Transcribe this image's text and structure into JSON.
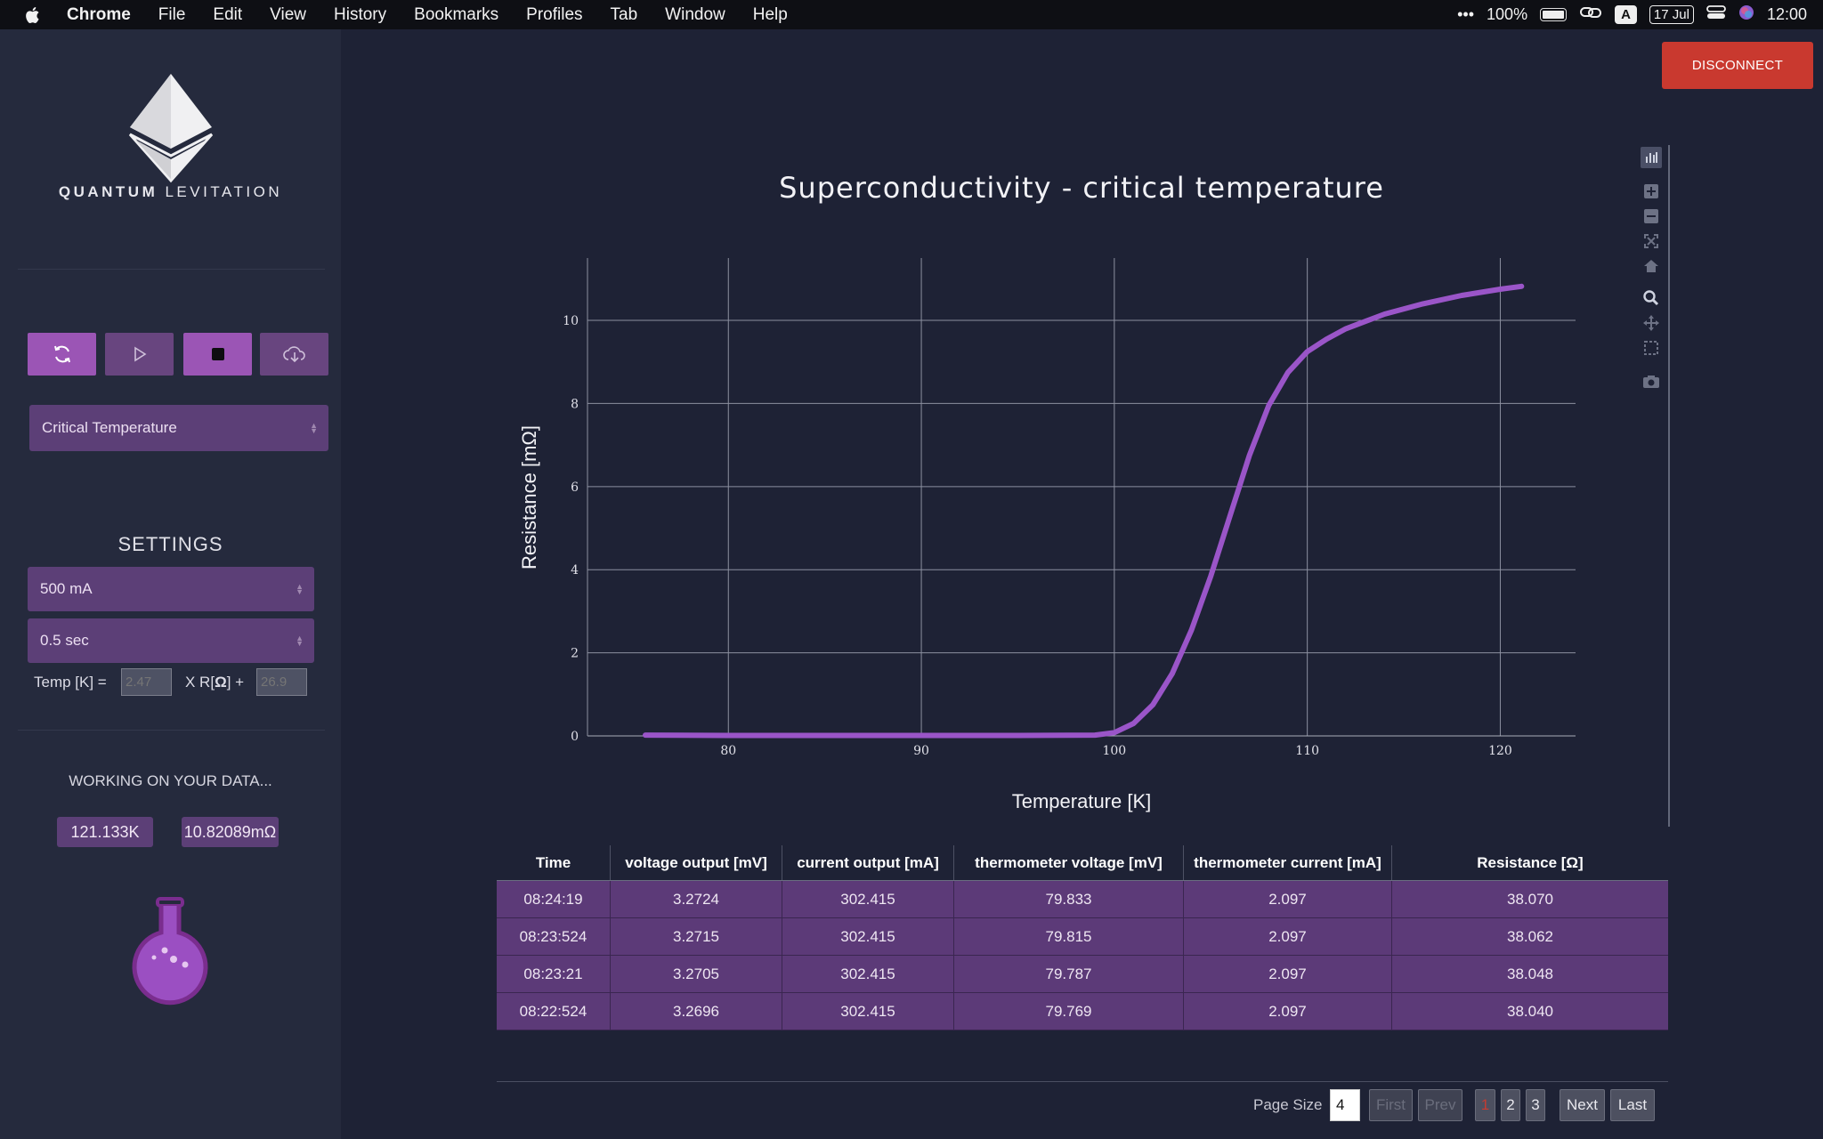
{
  "menubar": {
    "app": "Chrome",
    "items": [
      "File",
      "Edit",
      "View",
      "History",
      "Bookmarks",
      "Profiles",
      "Tab",
      "Window",
      "Help"
    ],
    "battery": "100%",
    "input_source": "A",
    "date": "17 Jul",
    "time": "12:00"
  },
  "sidebar": {
    "brand_bold": "QUANTUM",
    "brand_rest": " LEVITATION",
    "controls": [
      "refresh-icon",
      "play-icon",
      "stop-icon",
      "cloud-download-icon"
    ],
    "experiment_select": "Critical Temperature",
    "settings_title": "SETTINGS",
    "current_select": "500 mA",
    "interval_select": "0.5 sec",
    "calib_temp_label": "Temp [K] =",
    "calib_temp_placeholder": "2.47",
    "calib_mult_label_a": "X R[",
    "calib_mult_label_b": "Ω",
    "calib_mult_label_c": "] +",
    "calib_offset_placeholder": "26.9",
    "working": "WORKING ON YOUR DATA...",
    "readout_temp": "121.133K",
    "readout_res": "10.82089mΩ"
  },
  "header": {
    "disconnect": "DISCONNECT"
  },
  "modebar": [
    "bar-chart-icon",
    "zoom-in-icon",
    "zoom-out-icon",
    "autoscale-icon",
    "home-icon",
    "zoom-icon",
    "pan-icon",
    "box-select-icon",
    "camera-icon"
  ],
  "chart_data": {
    "type": "line",
    "title": "Superconductivity - critical temperature",
    "xlabel": "Temperature [K]",
    "ylabel": "Resistance [mΩ]",
    "xlim": [
      72.7,
      123.9
    ],
    "ylim": [
      0,
      11.5
    ],
    "xticks": [
      80,
      90,
      100,
      110,
      120
    ],
    "yticks": [
      0,
      2,
      4,
      6,
      8,
      10
    ],
    "grid": true,
    "color": "#9a55c8",
    "series": [
      {
        "x": [
          75.7,
          80,
          85,
          90,
          95,
          99,
          100,
          101,
          102,
          103,
          104,
          105,
          106,
          107,
          108,
          109,
          110,
          111,
          112,
          114,
          116,
          118,
          120,
          121.1
        ],
        "y": [
          0.02,
          0.01,
          0.01,
          0.01,
          0.01,
          0.02,
          0.08,
          0.3,
          0.75,
          1.5,
          2.55,
          3.85,
          5.3,
          6.75,
          7.95,
          8.75,
          9.25,
          9.55,
          9.8,
          10.15,
          10.4,
          10.6,
          10.75,
          10.82
        ]
      }
    ]
  },
  "table": {
    "headers": [
      "Time",
      "voltage output [mV]",
      "current output [mA]",
      "thermometer voltage [mV]",
      "thermometer current [mA]",
      "Resistance [Ω]"
    ],
    "rows": [
      [
        "08:24:19",
        "3.2724",
        "302.415",
        "79.833",
        "2.097",
        "38.070"
      ],
      [
        "08:23:524",
        "3.2715",
        "302.415",
        "79.815",
        "2.097",
        "38.062"
      ],
      [
        "08:23:21",
        "3.2705",
        "302.415",
        "79.787",
        "2.097",
        "38.048"
      ],
      [
        "08:22:524",
        "3.2696",
        "302.415",
        "79.769",
        "2.097",
        "38.040"
      ]
    ]
  },
  "pager": {
    "label": "Page Size",
    "size": "4",
    "first": "First",
    "prev": "Prev",
    "pages": [
      "1",
      "2",
      "3"
    ],
    "next": "Next",
    "last": "Last"
  }
}
